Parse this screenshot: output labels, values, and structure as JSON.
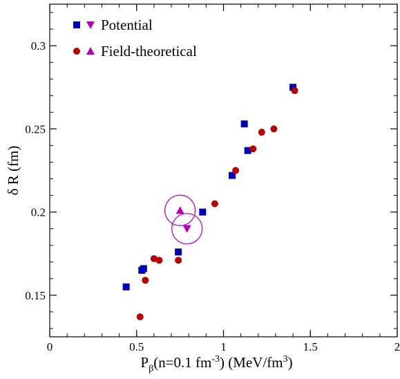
{
  "chart_data": {
    "type": "scatter",
    "xlim": [
      0,
      2
    ],
    "ylim": [
      0.125,
      0.325
    ],
    "x_ticks": [
      {
        "value": 0,
        "label": "0"
      },
      {
        "value": 0.5,
        "label": "0.5"
      },
      {
        "value": 1,
        "label": "1"
      },
      {
        "value": 1.5,
        "label": "1.5"
      },
      {
        "value": 2,
        "label": "2"
      }
    ],
    "y_ticks": [
      {
        "value": 0.15,
        "label": "0.15"
      },
      {
        "value": 0.2,
        "label": "0.2"
      },
      {
        "value": 0.25,
        "label": "0.25"
      },
      {
        "value": 0.3,
        "label": "0.3"
      }
    ],
    "xlabel": {
      "main": "P",
      "sub": "β",
      "rest": "(n=0.1 fm",
      "sup": "-3",
      "rest2": ") (MeV/fm",
      "sup2": "3",
      "rest3": ")"
    },
    "ylabel": "δ R (fm)",
    "grid": false,
    "legend_position": "top-left",
    "legend": [
      {
        "label": "Potential",
        "markers": [
          "square",
          "triangle-down"
        ],
        "colors": [
          "#0000b4",
          "#b400b4"
        ]
      },
      {
        "label": "Field-theoretical",
        "markers": [
          "circle",
          "triangle-up"
        ],
        "colors": [
          "#b40000",
          "#b400b4"
        ]
      }
    ],
    "series": [
      {
        "name": "Potential",
        "marker": "square",
        "color": "#0000b4",
        "points": [
          [
            0.44,
            0.155
          ],
          [
            0.53,
            0.165
          ],
          [
            0.54,
            0.166
          ],
          [
            0.74,
            0.176
          ],
          [
            0.88,
            0.2
          ],
          [
            1.05,
            0.222
          ],
          [
            1.12,
            0.253
          ],
          [
            1.14,
            0.237
          ],
          [
            1.4,
            0.275
          ]
        ]
      },
      {
        "name": "Field-theoretical",
        "marker": "circle",
        "color": "#b40000",
        "points": [
          [
            0.52,
            0.137
          ],
          [
            0.55,
            0.159
          ],
          [
            0.6,
            0.172
          ],
          [
            0.63,
            0.171
          ],
          [
            0.74,
            0.171
          ],
          [
            0.95,
            0.205
          ],
          [
            1.07,
            0.225
          ],
          [
            1.17,
            0.238
          ],
          [
            1.22,
            0.248
          ],
          [
            1.29,
            0.25
          ],
          [
            1.41,
            0.273
          ]
        ]
      },
      {
        "name": "Potential (highlighted)",
        "marker": "triangle-down",
        "color": "#b400b4",
        "circled": true,
        "points": [
          [
            0.79,
            0.19
          ]
        ]
      },
      {
        "name": "Field-theoretical (highlighted)",
        "marker": "triangle-up",
        "color": "#b400b4",
        "circled": true,
        "points": [
          [
            0.75,
            0.201
          ]
        ]
      }
    ]
  }
}
